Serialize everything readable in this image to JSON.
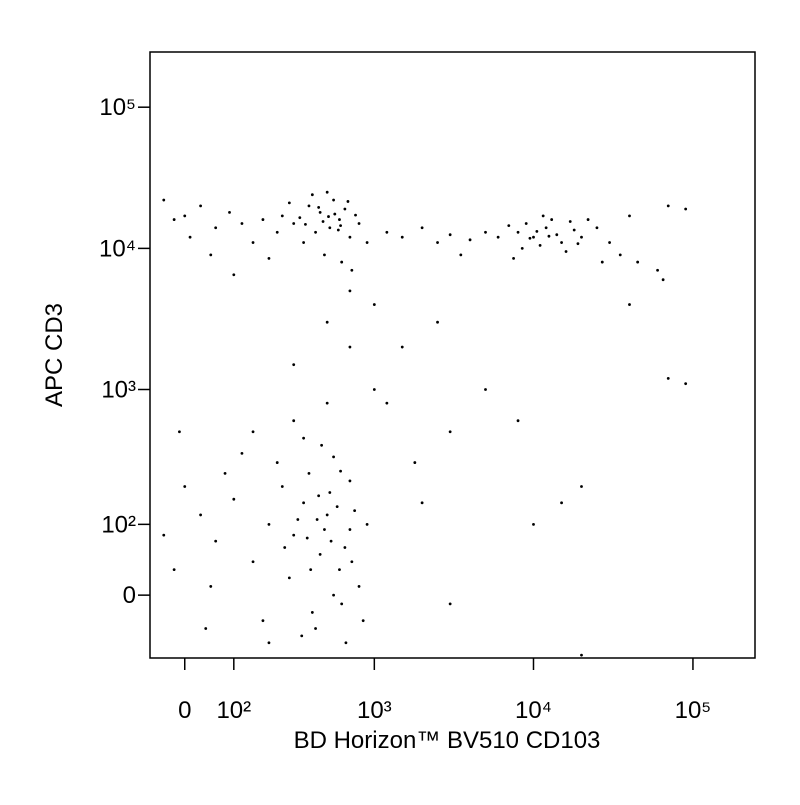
{
  "chart_data": {
    "type": "scatter",
    "x_label": "BD Horizon™ BV510 CD103",
    "y_label": "APC CD3",
    "xscale": "biexponential",
    "yscale": "biexponential",
    "color": "#000000",
    "xlim": [
      -68,
      245000
    ],
    "ylim": [
      -85,
      246000
    ],
    "xticks": [
      0,
      {
        "value": 100,
        "label": "10²"
      },
      {
        "value": 1000,
        "label": "10³"
      },
      {
        "value": 10000,
        "label": "10⁴"
      },
      {
        "value": 100000,
        "label": "10⁵"
      }
    ],
    "yticks": [
      0,
      {
        "value": 100,
        "label": "10²"
      },
      {
        "value": 1000,
        "label": "10³"
      },
      {
        "value": 10000,
        "label": "10⁴"
      },
      {
        "value": 100000,
        "label": "10⁵"
      }
    ],
    "x": [
      300,
      450,
      520,
      600,
      380,
      700,
      250,
      550,
      420,
      650,
      180,
      120,
      90,
      60,
      30,
      -20,
      800,
      900,
      1200,
      1500,
      2000,
      2500,
      3000,
      350,
      480,
      620,
      720,
      500,
      400,
      330,
      470,
      560,
      610,
      280,
      230,
      150,
      200,
      100,
      700,
      1000,
      50,
      10,
      -40,
      0,
      440,
      510,
      590,
      360,
      680,
      760,
      8000,
      10000,
      12000,
      15000,
      9000,
      11000,
      14000,
      7000,
      18000,
      20000,
      6000,
      5000,
      13000,
      16000,
      25000,
      30000,
      4000,
      9500,
      10500,
      12500,
      8500,
      17000,
      22000,
      35000,
      45000,
      60000,
      65000,
      70000,
      90000,
      40000,
      3500,
      7500,
      11500,
      19000,
      27000,
      300,
      450,
      500,
      600,
      350,
      700,
      250,
      550,
      400,
      650,
      200,
      150,
      100,
      60,
      30,
      -20,
      0,
      800,
      850,
      380,
      420,
      520,
      620,
      280,
      230,
      320,
      480,
      580,
      340,
      460,
      700,
      750,
      180,
      120,
      80,
      40,
      -40,
      -10,
      260,
      390,
      440,
      530,
      610,
      660,
      720,
      300,
      500,
      350,
      900,
      200,
      550,
      150,
      50,
      430,
      370,
      1500,
      2500,
      5000,
      8000,
      20000,
      15000,
      3000,
      1200,
      10000,
      2000,
      70000,
      90000,
      3000,
      1800,
      20000,
      40000,
      500,
      300,
      1000,
      700
    ],
    "values": [
      15000,
      18000,
      14000,
      16000,
      20000,
      12000,
      17000,
      22000,
      13000,
      19000,
      16000,
      15000,
      18000,
      14000,
      20000,
      16000,
      15000,
      11000,
      13000,
      12000,
      14000,
      11000,
      12500,
      11000,
      9000,
      8000,
      7000,
      25000,
      24000,
      16500,
      15500,
      17500,
      14500,
      21000,
      13000,
      11000,
      8500,
      6500,
      5000,
      4000,
      9000,
      12000,
      22000,
      17000,
      19500,
      16800,
      13500,
      14800,
      21500,
      17200,
      13000,
      12000,
      14000,
      11000,
      15000,
      10500,
      12500,
      14500,
      13500,
      12000,
      12000,
      13000,
      16000,
      9500,
      14000,
      11000,
      11500,
      11800,
      13200,
      12200,
      10000,
      15500,
      16000,
      9000,
      8000,
      7000,
      6000,
      20000,
      19000,
      17000,
      9000,
      8500,
      17000,
      10800,
      8000,
      80,
      50,
      120,
      30,
      150,
      90,
      200,
      0,
      -20,
      60,
      100,
      40,
      160,
      70,
      120,
      30,
      200,
      10,
      -30,
      250,
      -40,
      180,
      -10,
      20,
      300,
      110,
      90,
      140,
      -50,
      400,
      220,
      130,
      -30,
      350,
      250,
      -40,
      80,
      500,
      60,
      30,
      170,
      70,
      260,
      -60,
      40,
      600,
      800,
      450,
      100,
      -60,
      330,
      500,
      10,
      110,
      75,
      2000,
      3000,
      1000,
      600,
      200,
      150,
      500,
      800,
      100,
      150,
      1200,
      1100,
      -10,
      300,
      -80,
      4000,
      3000,
      1500,
      1000,
      2000
    ]
  }
}
